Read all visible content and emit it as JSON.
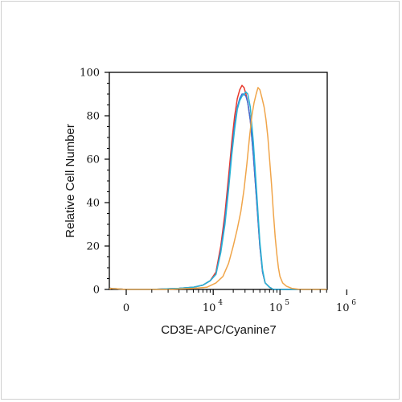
{
  "chart_data": {
    "type": "line",
    "xlabel": "CD3E-APC/Cyanine7",
    "ylabel": "Relative Cell Number",
    "x_scale": "biexponential",
    "x_ticks": [
      {
        "value": 0,
        "label": "0",
        "exp": ""
      },
      {
        "value": 10000,
        "label": "10",
        "exp": "4"
      },
      {
        "value": 100000,
        "label": "10",
        "exp": "5"
      },
      {
        "value": 1000000,
        "label": "10",
        "exp": "6"
      }
    ],
    "y_ticks": [
      "0",
      "20",
      "40",
      "60",
      "80",
      "100"
    ],
    "ylim": [
      0,
      100
    ],
    "grid": false,
    "series": [
      {
        "color": "#e8392b",
        "points": [
          [
            -3000,
            0
          ],
          [
            -1000,
            0.5
          ],
          [
            0,
            0
          ],
          [
            1000,
            0
          ],
          [
            3000,
            0.5
          ],
          [
            5000,
            1
          ],
          [
            7000,
            2
          ],
          [
            9000,
            4
          ],
          [
            11000,
            8
          ],
          [
            13000,
            20
          ],
          [
            15000,
            35
          ],
          [
            17000,
            52
          ],
          [
            19000,
            68
          ],
          [
            21000,
            80
          ],
          [
            23000,
            88
          ],
          [
            25000,
            92
          ],
          [
            27000,
            94
          ],
          [
            29000,
            93
          ],
          [
            31000,
            90
          ],
          [
            33000,
            86
          ],
          [
            36000,
            78
          ],
          [
            40000,
            62
          ],
          [
            45000,
            40
          ],
          [
            50000,
            20
          ],
          [
            55000,
            8
          ],
          [
            60000,
            3
          ],
          [
            70000,
            1
          ],
          [
            80000,
            0
          ],
          [
            1000000,
            0
          ]
        ]
      },
      {
        "color": "#3a6fd6",
        "points": [
          [
            -3000,
            0
          ],
          [
            -1000,
            0.5
          ],
          [
            0,
            0
          ],
          [
            1000,
            0
          ],
          [
            3000,
            0.5
          ],
          [
            5000,
            1
          ],
          [
            7000,
            2
          ],
          [
            9000,
            4
          ],
          [
            11000,
            7
          ],
          [
            13000,
            18
          ],
          [
            15000,
            32
          ],
          [
            17000,
            48
          ],
          [
            19000,
            64
          ],
          [
            21000,
            76
          ],
          [
            23000,
            84
          ],
          [
            25000,
            88
          ],
          [
            27000,
            90
          ],
          [
            29000,
            90
          ],
          [
            31000,
            89
          ],
          [
            33000,
            86
          ],
          [
            36000,
            78
          ],
          [
            40000,
            62
          ],
          [
            45000,
            40
          ],
          [
            50000,
            20
          ],
          [
            55000,
            8
          ],
          [
            60000,
            3
          ],
          [
            70000,
            1
          ],
          [
            80000,
            0
          ],
          [
            1000000,
            0
          ]
        ]
      },
      {
        "color": "#29b3d4",
        "points": [
          [
            -3000,
            0
          ],
          [
            -1000,
            0.5
          ],
          [
            0,
            0
          ],
          [
            1000,
            0
          ],
          [
            3000,
            0.5
          ],
          [
            5000,
            1
          ],
          [
            7000,
            2
          ],
          [
            9000,
            4
          ],
          [
            11000,
            7
          ],
          [
            13000,
            17
          ],
          [
            15000,
            30
          ],
          [
            17000,
            46
          ],
          [
            19000,
            62
          ],
          [
            21000,
            74
          ],
          [
            23000,
            83
          ],
          [
            25000,
            87
          ],
          [
            27000,
            89
          ],
          [
            29000,
            90
          ],
          [
            31000,
            91
          ],
          [
            33000,
            90
          ],
          [
            36000,
            84
          ],
          [
            40000,
            68
          ],
          [
            45000,
            44
          ],
          [
            50000,
            22
          ],
          [
            55000,
            9
          ],
          [
            60000,
            3
          ],
          [
            70000,
            1
          ],
          [
            80000,
            0
          ],
          [
            1000000,
            0
          ]
        ]
      },
      {
        "color": "#f0a54a",
        "points": [
          [
            -3000,
            0
          ],
          [
            -1000,
            0.5
          ],
          [
            0,
            0
          ],
          [
            2000,
            0
          ],
          [
            5000,
            0.5
          ],
          [
            8000,
            1
          ],
          [
            11000,
            3
          ],
          [
            14000,
            6
          ],
          [
            17000,
            12
          ],
          [
            20000,
            20
          ],
          [
            23000,
            28
          ],
          [
            26000,
            36
          ],
          [
            29000,
            46
          ],
          [
            32000,
            58
          ],
          [
            35000,
            70
          ],
          [
            38000,
            80
          ],
          [
            41000,
            86
          ],
          [
            44000,
            90
          ],
          [
            47000,
            93
          ],
          [
            50000,
            92
          ],
          [
            54000,
            88
          ],
          [
            58000,
            84
          ],
          [
            62000,
            78
          ],
          [
            66000,
            70
          ],
          [
            70000,
            60
          ],
          [
            75000,
            48
          ],
          [
            80000,
            35
          ],
          [
            85000,
            24
          ],
          [
            90000,
            16
          ],
          [
            95000,
            10
          ],
          [
            100000,
            6
          ],
          [
            110000,
            3
          ],
          [
            125000,
            1.5
          ],
          [
            150000,
            0.5
          ],
          [
            200000,
            0
          ],
          [
            1000000,
            0
          ]
        ]
      }
    ]
  }
}
